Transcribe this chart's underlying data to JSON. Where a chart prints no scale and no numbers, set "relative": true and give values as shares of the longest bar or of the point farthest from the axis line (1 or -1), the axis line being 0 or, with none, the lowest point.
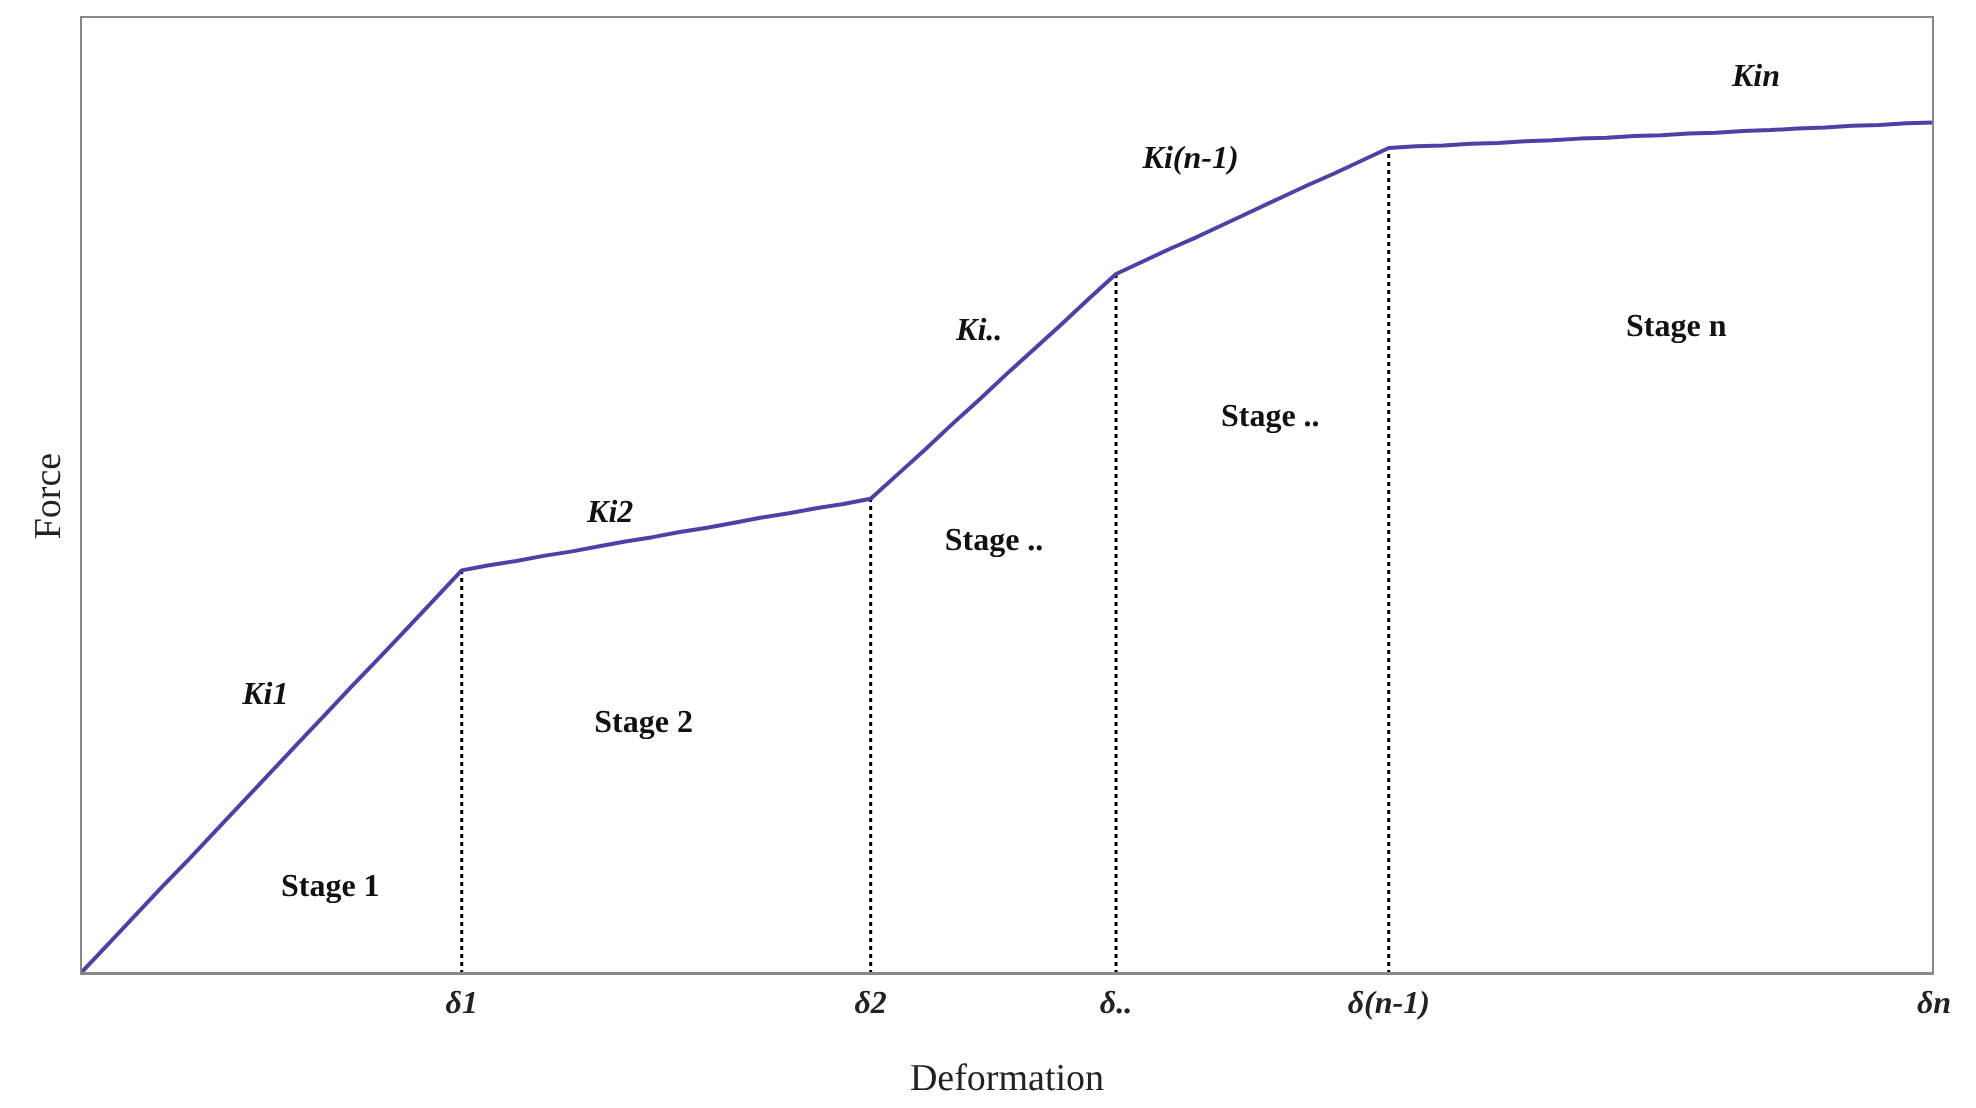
{
  "chart_data": {
    "type": "line",
    "xlabel": "Deformation",
    "ylabel": "Force",
    "relative": true,
    "categories": [
      null,
      null,
      null,
      null,
      null,
      null,
      null,
      null,
      null,
      null,
      null,
      null,
      null,
      null,
      "δ1",
      null,
      null,
      null,
      null,
      null,
      null,
      null,
      null,
      null,
      null,
      null,
      null,
      null,
      null,
      "δ2",
      null,
      null,
      null,
      null,
      null,
      null,
      null,
      null,
      "δ..",
      null,
      null,
      null,
      null,
      null,
      null,
      null,
      null,
      null,
      "δ(n-1)",
      null,
      null,
      null,
      null,
      null,
      null,
      null,
      null,
      null,
      null,
      null,
      null,
      null,
      null,
      null,
      null,
      null,
      null,
      null,
      "δn"
    ],
    "series": [
      {
        "color": "#4b42a8",
        "values": [
          0,
          0.034,
          0.068,
          0.102,
          0.135,
          0.169,
          0.203,
          0.237,
          0.271,
          0.305,
          0.339,
          0.372,
          0.406,
          0.44,
          0.474,
          0.48,
          0.485,
          0.491,
          0.496,
          0.502,
          0.508,
          0.513,
          0.519,
          0.524,
          0.53,
          0.536,
          0.541,
          0.547,
          0.552,
          0.558,
          0.587,
          0.616,
          0.646,
          0.675,
          0.705,
          0.734,
          0.763,
          0.793,
          0.822,
          0.837,
          0.852,
          0.866,
          0.881,
          0.896,
          0.911,
          0.926,
          0.94,
          0.955,
          0.97,
          0.972,
          0.973,
          0.975,
          0.976,
          0.978,
          0.979,
          0.981,
          0.982,
          0.984,
          0.985,
          0.987,
          0.988,
          0.99,
          0.991,
          0.993,
          0.994,
          0.996,
          0.997,
          0.999,
          1
        ]
      }
    ],
    "ref_lines": [
      {
        "axis": "x",
        "value": "δ1",
        "line_style": "dotted",
        "color": "#000000"
      },
      {
        "axis": "x",
        "value": "δ2",
        "line_style": "dotted",
        "color": "#000000"
      },
      {
        "axis": "x",
        "value": "δ..",
        "line_style": "dotted",
        "color": "#000000"
      },
      {
        "axis": "x",
        "value": "δ(n-1)",
        "line_style": "dotted",
        "color": "#000000"
      }
    ],
    "annotations": [
      "Ki1",
      "Stage 1",
      "Ki2",
      "Stage 2",
      "Ki..",
      "Stage ..",
      "Ki(n-1)",
      "Stage ..",
      "Kin",
      "Stage n"
    ],
    "grid": false,
    "legend": false,
    "marker": "none",
    "line_style": "solid"
  }
}
